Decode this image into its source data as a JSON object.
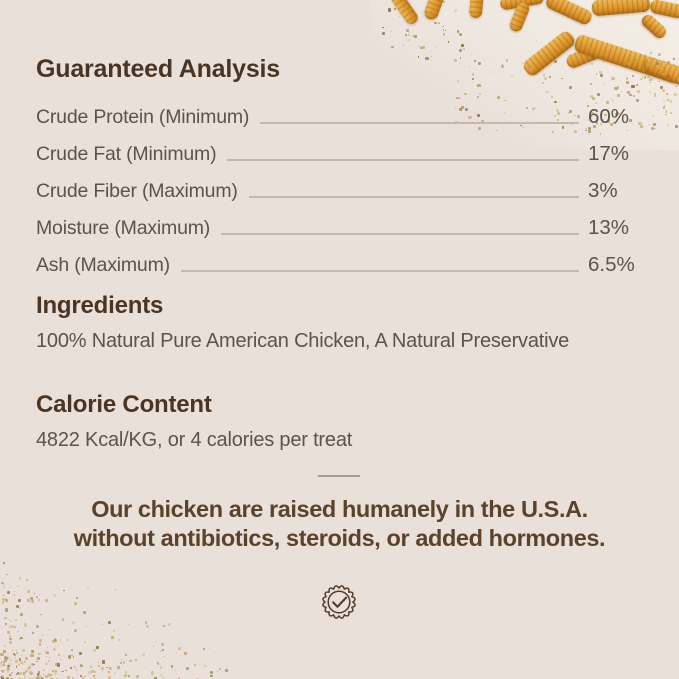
{
  "colors": {
    "bg": "#e9e0da",
    "photo_bg": "#f2ece3",
    "heading": "#4a3423",
    "body": "#5c5349",
    "line": "#c6b7ab",
    "divider": "#a99a8c",
    "statement": "#5b432b",
    "gold_light": "#f0bd5e",
    "gold": "#e09a2e",
    "gold_dark": "#c87f1f",
    "speckle": "#b8954f"
  },
  "guaranteed_analysis": {
    "title": "Guaranteed Analysis",
    "rows": [
      {
        "label": "Crude Protein (Minimum)",
        "value": "60%"
      },
      {
        "label": "Crude Fat (Minimum)",
        "value": "17%"
      },
      {
        "label": "Crude Fiber (Maximum)",
        "value": "3%"
      },
      {
        "label": "Moisture (Maximum)",
        "value": "13%"
      },
      {
        "label": "Ash (Maximum)",
        "value": "6.5%"
      }
    ]
  },
  "ingredients": {
    "title": "Ingredients",
    "text": "100% Natural Pure American Chicken, A Natural Preservative"
  },
  "calorie_content": {
    "title": "Calorie Content",
    "text": "4822 Kcal/KG, or 4 calories per treat"
  },
  "statement": {
    "line1": "Our chicken are raised humanely in the U.S.A.",
    "line2": "without antibiotics, steroids, or added hormones."
  },
  "footer": {
    "badge_icon": "seal-check-icon"
  }
}
